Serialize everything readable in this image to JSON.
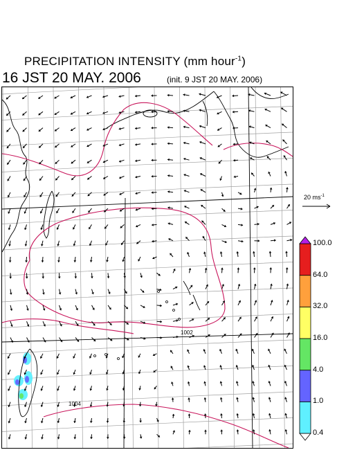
{
  "title": {
    "main": "PRECIPITATION INTENSITY (mm hour",
    "exponent": "-1",
    "close": ")"
  },
  "subtitle": {
    "valid_time": "16 JST 20 MAY. 2006",
    "init_time": "(init. 9 JST 20 MAY. 2006)"
  },
  "reference_vector": {
    "label": "20 ms",
    "exponent": "-1"
  },
  "pressure_labels": [
    "1002",
    "1004"
  ],
  "colorbar": {
    "levels": [
      "0.4",
      "1.0",
      "4.0",
      "16.0",
      "32.0",
      "64.0",
      "100.0"
    ],
    "colors": [
      "#5ff0ff",
      "#6464ff",
      "#64e664",
      "#ffff64",
      "#ffa03c",
      "#e61e1e",
      "#b41ee6"
    ]
  },
  "colors": {
    "isobar": "#c8145a",
    "coast": "#000000",
    "grid": "#a0a0a0",
    "arrow": "#000000"
  }
}
